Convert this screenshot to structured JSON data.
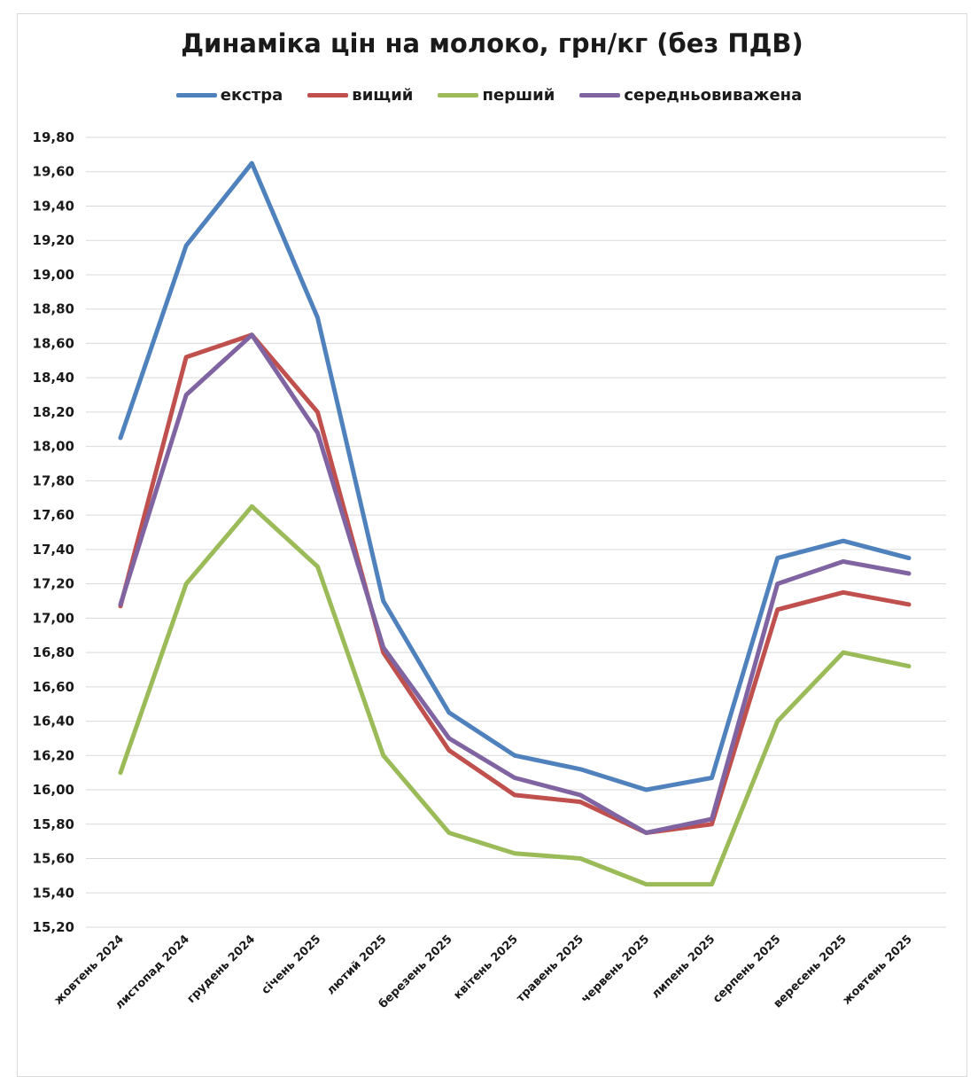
{
  "chart_data": {
    "type": "line",
    "title": "Динаміка цін на молоко, грн/кг (без ПДВ)",
    "xlabel": "",
    "ylabel": "",
    "ylim": [
      15.2,
      19.8
    ],
    "yticks": [
      "15,20",
      "15,40",
      "15,60",
      "15,80",
      "16,00",
      "16,20",
      "16,40",
      "16,60",
      "16,80",
      "17,00",
      "17,20",
      "17,40",
      "17,60",
      "17,80",
      "18,00",
      "18,20",
      "18,40",
      "18,60",
      "18,80",
      "19,00",
      "19,20",
      "19,40",
      "19,60",
      "19,80"
    ],
    "categories": [
      "жовтень 2024",
      "листопад 2024",
      "грудень 2024",
      "січень 2025",
      "лютий 2025",
      "березень 2025",
      "квітень 2025",
      "травень 2025",
      "червень 2025",
      "липень 2025",
      "серпень 2025",
      "вересень 2025",
      "жовтень 2025"
    ],
    "legend_position": "top",
    "grid": true,
    "series": [
      {
        "name": "екстра",
        "color": "#4f81bd",
        "values": [
          18.05,
          19.17,
          19.65,
          18.75,
          17.1,
          16.45,
          16.2,
          16.12,
          16.0,
          16.07,
          17.35,
          17.45,
          17.35
        ]
      },
      {
        "name": "вищий",
        "color": "#c0504d",
        "values": [
          17.07,
          18.52,
          18.65,
          18.2,
          16.8,
          16.23,
          15.97,
          15.93,
          15.75,
          15.8,
          17.05,
          17.15,
          17.08
        ]
      },
      {
        "name": "перший",
        "color": "#9bbb59",
        "values": [
          16.1,
          17.2,
          17.65,
          17.3,
          16.2,
          15.75,
          15.63,
          15.6,
          15.45,
          15.45,
          16.4,
          16.8,
          16.72
        ]
      },
      {
        "name": "середньовиважена",
        "color": "#8064a2",
        "values": [
          17.08,
          18.3,
          18.65,
          18.08,
          16.83,
          16.3,
          16.07,
          15.97,
          15.75,
          15.83,
          17.2,
          17.33,
          17.26
        ]
      }
    ]
  }
}
